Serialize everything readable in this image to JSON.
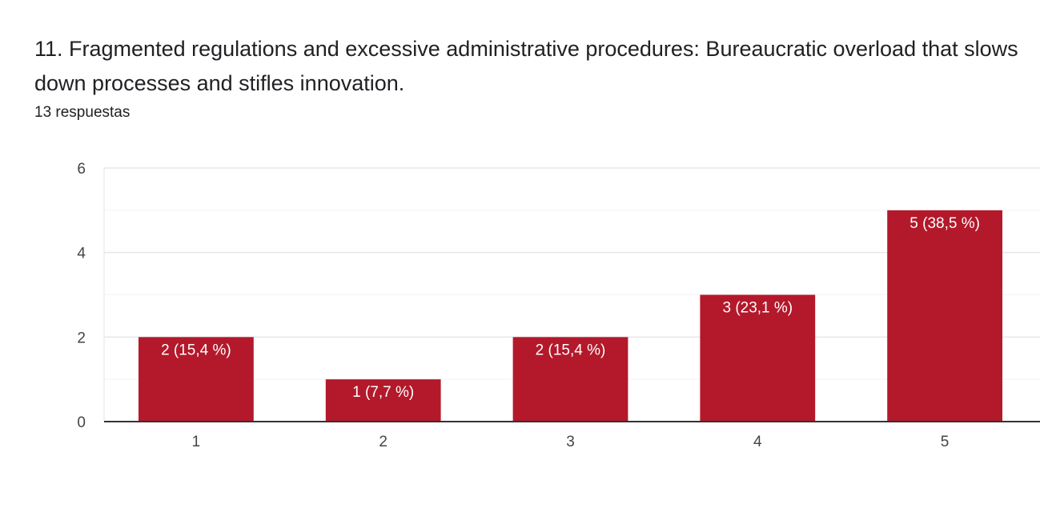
{
  "question": {
    "title": "11.  Fragmented regulations and excessive administrative procedures: Bureaucratic overload that slows down processes and stifles innovation.",
    "response_count": "13 respuestas"
  },
  "colors": {
    "bar": "#b3192b",
    "gridline": "#e6e6e6",
    "minor_gridline": "#f3f3f3",
    "axis": "#333333"
  },
  "chart_data": {
    "type": "bar",
    "categories": [
      "1",
      "2",
      "3",
      "4",
      "5"
    ],
    "values": [
      2,
      1,
      2,
      3,
      5
    ],
    "data_labels": [
      "2 (15,4 %)",
      "1 (7,7 %)",
      "2 (15,4 %)",
      "3 (23,1 %)",
      "5 (38,5 %)"
    ],
    "y_ticks": [
      "0",
      "2",
      "4",
      "6"
    ],
    "ylim": [
      0,
      6
    ],
    "grid": true
  }
}
